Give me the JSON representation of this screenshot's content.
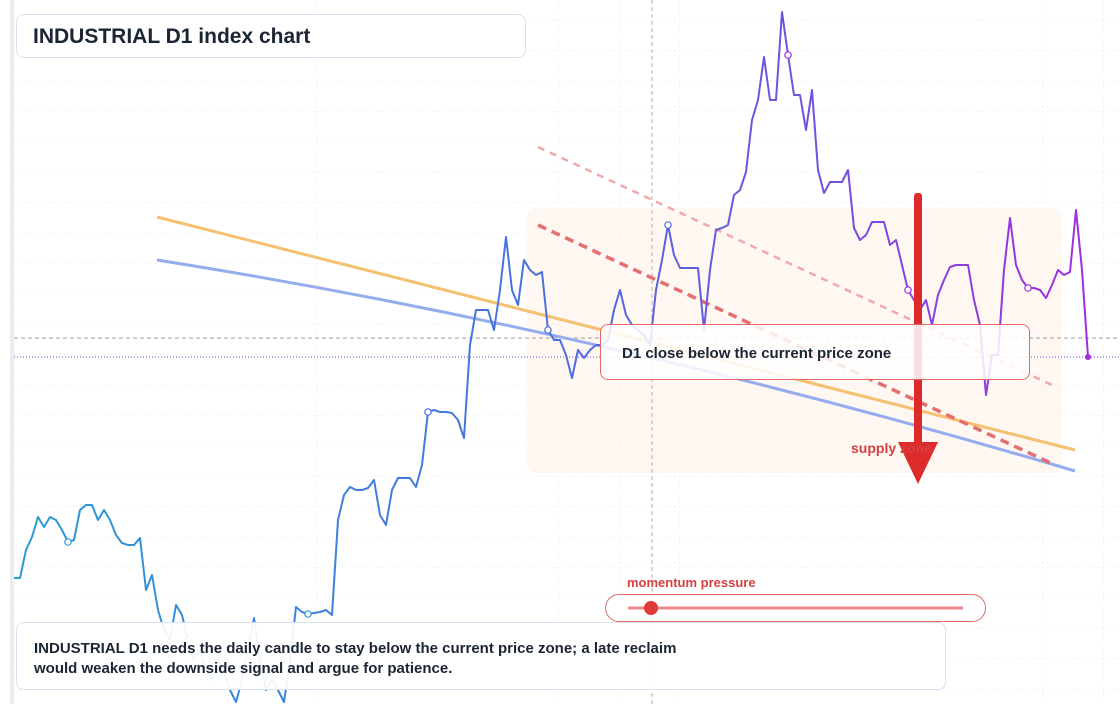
{
  "chart_data": {
    "type": "line",
    "title": "INDUSTRIAL D1 index chart",
    "values": [
      12.6,
      12.6,
      15.4,
      16.7,
      18.7,
      17.7,
      18.7,
      18.4,
      17.4,
      16.2,
      16.4,
      19.4,
      19.9,
      19.9,
      18.4,
      19.4,
      18.4,
      16.9,
      16.1,
      15.9,
      15.9,
      16.6,
      11.4,
      12.9,
      9.4,
      7.4,
      6.4,
      9.9,
      8.9,
      6.4,
      4.4,
      5.4,
      3.4,
      2.4,
      4.4,
      3.4,
      1.4,
      0.2,
      2.4,
      5.4,
      8.6,
      4.4,
      1.4,
      2.4,
      1.4,
      0.2,
      4.4,
      9.7,
      9.2,
      9.0,
      9.1,
      9.2,
      9.4,
      8.9,
      18.4,
      20.9,
      21.7,
      21.4,
      21.4,
      21.6,
      22.4,
      18.9,
      17.9,
      21.4,
      22.6,
      22.6,
      22.6,
      21.7,
      23.9,
      29.2,
      29.4,
      29.2,
      29.2,
      29.1,
      28.4,
      26.6,
      35.9,
      39.4,
      39.4,
      39.4,
      37.4,
      41.4,
      46.7,
      41.4,
      39.9,
      44.4,
      43.4,
      42.9,
      43.2,
      37.4,
      36.4,
      36.4,
      34.9,
      32.6,
      35.4,
      34.6,
      35.4,
      35.9,
      35.9,
      36.4,
      39.4,
      41.4,
      38.9,
      37.9,
      37.4,
      36.9,
      35.9,
      41.4,
      44.4,
      47.9,
      44.9,
      43.6,
      43.6,
      43.6,
      43.6,
      37.4,
      43.4,
      47.4,
      47.6,
      47.9,
      50.9,
      51.4,
      53.2,
      58.4,
      60.4,
      64.7,
      60.4,
      60.4,
      69.2,
      64.9,
      60.9,
      60.9,
      57.4,
      61.4,
      53.4,
      51.1,
      52.2,
      52.2,
      52.2,
      53.4,
      47.6,
      46.4,
      46.9,
      48.2,
      48.2,
      48.2,
      45.9,
      46.4,
      43.9,
      41.4,
      40.4,
      39.4,
      40.4,
      37.9,
      40.9,
      42.4,
      43.7,
      43.9,
      43.9,
      43.9,
      40.4,
      37.9,
      30.9,
      34.9,
      34.9,
      43.4,
      48.6,
      43.9,
      42.4,
      41.6,
      41.6,
      41.4,
      40.6,
      41.9,
      43.4,
      42.9,
      43.2,
      49.4,
      43.4,
      34.7
    ],
    "ylim": [
      0,
      70.4
    ],
    "gradient": [
      "#2a9bd6",
      "#4a6fe0",
      "#a02ee0"
    ],
    "callout": "D1 close below the current price zone",
    "zone_label": "supply zone",
    "gauge_label": "momentum pressure",
    "note": "INDUSTRIAL D1 needs the daily candle to stay below the current price zone; a late reclaim would weaken the downside signal and argue for patience."
  }
}
